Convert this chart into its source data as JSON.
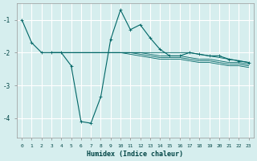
{
  "xlabel": "Humidex (Indice chaleur)",
  "background_color": "#d6eeee",
  "grid_color": "#b8d8d8",
  "line_color": "#006666",
  "xlim": [
    -0.5,
    23.5
  ],
  "ylim": [
    -4.6,
    -0.5
  ],
  "yticks": [
    -4,
    -3,
    -2,
    -1
  ],
  "xticks": [
    0,
    1,
    2,
    3,
    4,
    5,
    6,
    7,
    8,
    9,
    10,
    11,
    12,
    13,
    14,
    15,
    16,
    17,
    18,
    19,
    20,
    21,
    22,
    23
  ],
  "series": [
    [
      -1.0,
      -1.7,
      -2.0,
      -2.0,
      -2.0,
      -2.4,
      -4.1,
      -4.15,
      -3.35,
      -1.6,
      -0.7,
      -1.3,
      -1.15,
      -1.55,
      -1.9,
      -2.1,
      -2.1,
      -2.0,
      -2.05,
      -2.1,
      -2.1,
      -2.2,
      -2.25,
      -2.3
    ],
    [
      null,
      null,
      null,
      -2.0,
      -2.0,
      -2.0,
      -2.0,
      -2.0,
      -2.0,
      -2.0,
      -2.0,
      -2.0,
      -2.0,
      -2.0,
      -2.0,
      -2.0,
      -2.0,
      -2.0,
      -2.05,
      -2.1,
      -2.15,
      -2.2,
      -2.25,
      -2.3
    ],
    [
      null,
      null,
      null,
      -2.0,
      -2.0,
      -2.0,
      -2.0,
      -2.0,
      -2.0,
      -2.0,
      -2.0,
      -2.0,
      -2.0,
      -2.05,
      -2.1,
      -2.1,
      -2.1,
      -2.15,
      -2.2,
      -2.2,
      -2.25,
      -2.3,
      -2.3,
      -2.35
    ],
    [
      null,
      null,
      null,
      -2.0,
      -2.0,
      -2.0,
      -2.0,
      -2.0,
      -2.0,
      -2.0,
      -2.0,
      -2.0,
      -2.05,
      -2.1,
      -2.15,
      -2.15,
      -2.15,
      -2.2,
      -2.25,
      -2.25,
      -2.3,
      -2.35,
      -2.35,
      -2.4
    ],
    [
      null,
      null,
      null,
      -2.0,
      -2.0,
      -2.0,
      -2.0,
      -2.0,
      -2.0,
      -2.0,
      -2.0,
      -2.05,
      -2.1,
      -2.15,
      -2.2,
      -2.2,
      -2.2,
      -2.25,
      -2.3,
      -2.3,
      -2.35,
      -2.4,
      -2.4,
      -2.45
    ]
  ],
  "marker": "+",
  "marker_size": 3,
  "line_width": 0.8
}
